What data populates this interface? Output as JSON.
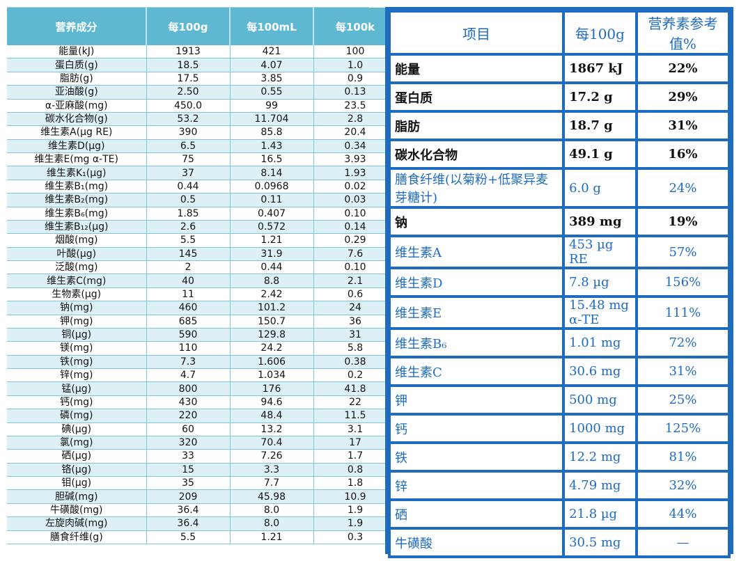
{
  "left": {
    "headers": [
      "营养成分",
      "每100g",
      "每100mL",
      "每100k"
    ],
    "rows": [
      [
        "能量(kJ)",
        "1913",
        "421",
        "100"
      ],
      [
        "蛋白质(g)",
        "18.5",
        "4.07",
        "1.0"
      ],
      [
        "脂肪(g)",
        "17.5",
        "3.85",
        "0.9"
      ],
      [
        "亚油酸(g)",
        "2.50",
        "0.55",
        "0.13"
      ],
      [
        "α-亚麻酸(mg)",
        "450.0",
        "99",
        "23.5"
      ],
      [
        "碳水化合物(g)",
        "53.2",
        "11.704",
        "2.8"
      ],
      [
        "维生素A(µg RE)",
        "390",
        "85.8",
        "20.4"
      ],
      [
        "维生素D(µg)",
        "6.5",
        "1.43",
        "0.34"
      ],
      [
        "维生素E(mg α-TE)",
        "75",
        "16.5",
        "3.93"
      ],
      [
        "维生素K₁(µg)",
        "37",
        "8.14",
        "1.93"
      ],
      [
        "维生素B₁(mg)",
        "0.44",
        "0.0968",
        "0.02"
      ],
      [
        "维生素B₂(mg)",
        "0.5",
        "0.11",
        "0.03"
      ],
      [
        "维生素B₆(mg)",
        "1.85",
        "0.407",
        "0.10"
      ],
      [
        "维生素B₁₂(µg)",
        "2.6",
        "0.572",
        "0.14"
      ],
      [
        "烟酸(mg)",
        "5.5",
        "1.21",
        "0.29"
      ],
      [
        "叶酸(µg)",
        "145",
        "31.9",
        "7.6"
      ],
      [
        "泛酸(mg)",
        "2",
        "0.44",
        "0.10"
      ],
      [
        "维生素C(mg)",
        "40",
        "8.8",
        "2.1"
      ],
      [
        "生物素(µg)",
        "11",
        "2.42",
        "0.6"
      ],
      [
        "钠(mg)",
        "460",
        "101.2",
        "24"
      ],
      [
        "钾(mg)",
        "685",
        "150.7",
        "36"
      ],
      [
        "铜(µg)",
        "590",
        "129.8",
        "31"
      ],
      [
        "镁(mg)",
        "110",
        "24.2",
        "5.8"
      ],
      [
        "铁(mg)",
        "7.3",
        "1.606",
        "0.38"
      ],
      [
        "锌(mg)",
        "4.7",
        "1.034",
        "0.2"
      ],
      [
        "锰(µg)",
        "800",
        "176",
        "41.8"
      ],
      [
        "钙(mg)",
        "430",
        "94.6",
        "22"
      ],
      [
        "磷(mg)",
        "220",
        "48.4",
        "11.5"
      ],
      [
        "碘(µg)",
        "60",
        "13.2",
        "3.1"
      ],
      [
        "氯(mg)",
        "320",
        "70.4",
        "17"
      ],
      [
        "硒(µg)",
        "33",
        "7.26",
        "1.7"
      ],
      [
        "铬(µg)",
        "15",
        "3.3",
        "0.8"
      ],
      [
        "钼(µg)",
        "35",
        "7.7",
        "1.8"
      ],
      [
        "胆碱(mg)",
        "209",
        "45.98",
        "10.9"
      ],
      [
        "牛磺酸(mg)",
        "36.4",
        "8.0",
        "1.9"
      ],
      [
        "左旋肉碱(mg)",
        "36.4",
        "8.0",
        "1.9"
      ],
      [
        "膳食纤维(g)",
        "5.5",
        "1.21",
        "0.3"
      ]
    ]
  },
  "right": {
    "headers": [
      "项目",
      "每100g",
      "营养素参考值%"
    ],
    "rows": [
      {
        "name": "能量",
        "amount": "1867 kJ",
        "nrv": "22%",
        "bold": true
      },
      {
        "name": "蛋白质",
        "amount": "17.2 g",
        "nrv": "29%",
        "bold": true
      },
      {
        "name": "脂肪",
        "amount": "18.7 g",
        "nrv": "31%",
        "bold": true
      },
      {
        "name": "碳水化合物",
        "amount": "49.1 g",
        "nrv": "16%",
        "bold": true
      },
      {
        "name": "膳食纤维(以菊粉+低聚异麦芽糖计)",
        "amount": "6.0 g",
        "nrv": "24%",
        "bold": false
      },
      {
        "name": "钠",
        "amount": "389 mg",
        "nrv": "19%",
        "bold": true
      },
      {
        "name": "维生素A",
        "amount": "453 µg RE",
        "nrv": "57%",
        "bold": false
      },
      {
        "name": "维生素D",
        "amount": "7.8 µg",
        "nrv": "156%",
        "bold": false
      },
      {
        "name": "维生素E",
        "amount": "15.48 mg α-TE",
        "nrv": "111%",
        "bold": false
      },
      {
        "name": "维生素B₆",
        "amount": "1.01 mg",
        "nrv": "72%",
        "bold": false
      },
      {
        "name": "维生素C",
        "amount": "30.6 mg",
        "nrv": "31%",
        "bold": false
      },
      {
        "name": "钾",
        "amount": "500 mg",
        "nrv": "25%",
        "bold": false
      },
      {
        "name": "钙",
        "amount": "1000 mg",
        "nrv": "125%",
        "bold": false
      },
      {
        "name": "铁",
        "amount": "12.2 mg",
        "nrv": "81%",
        "bold": false
      },
      {
        "name": "锌",
        "amount": "4.79 mg",
        "nrv": "32%",
        "bold": false
      },
      {
        "name": "硒",
        "amount": "21.8 µg",
        "nrv": "44%",
        "bold": false
      },
      {
        "name": "牛磺酸",
        "amount": "30.5 mg",
        "nrv": "—",
        "bold": false
      }
    ]
  }
}
